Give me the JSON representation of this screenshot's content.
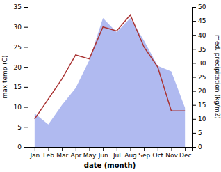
{
  "chart_data": {
    "type": "line",
    "categories": [
      "Jan",
      "Feb",
      "Mar",
      "Apr",
      "May",
      "Jun",
      "Jul",
      "Aug",
      "Sep",
      "Oct",
      "Nov",
      "Dec"
    ],
    "xlabel": "date (month)",
    "ylabel": "max temp (C)",
    "y2label": "med. precipitation (kg/m2)",
    "ylim": [
      0,
      35
    ],
    "yticks": [
      0,
      5,
      10,
      15,
      20,
      25,
      30,
      35
    ],
    "y2lim": [
      0,
      50
    ],
    "y2ticks": [
      0,
      5,
      10,
      15,
      20,
      25,
      30,
      35,
      40,
      45,
      50
    ],
    "series": [
      {
        "type": "area",
        "axis": "y2",
        "color": "#b0baf0",
        "values": [
          12,
          8,
          15,
          21,
          31,
          46,
          41,
          46,
          38,
          29,
          27,
          14
        ]
      },
      {
        "type": "line",
        "color": "#aa3333",
        "values": [
          7,
          12,
          17,
          23,
          22,
          30,
          29,
          33,
          25,
          20,
          9,
          9
        ]
      }
    ]
  }
}
